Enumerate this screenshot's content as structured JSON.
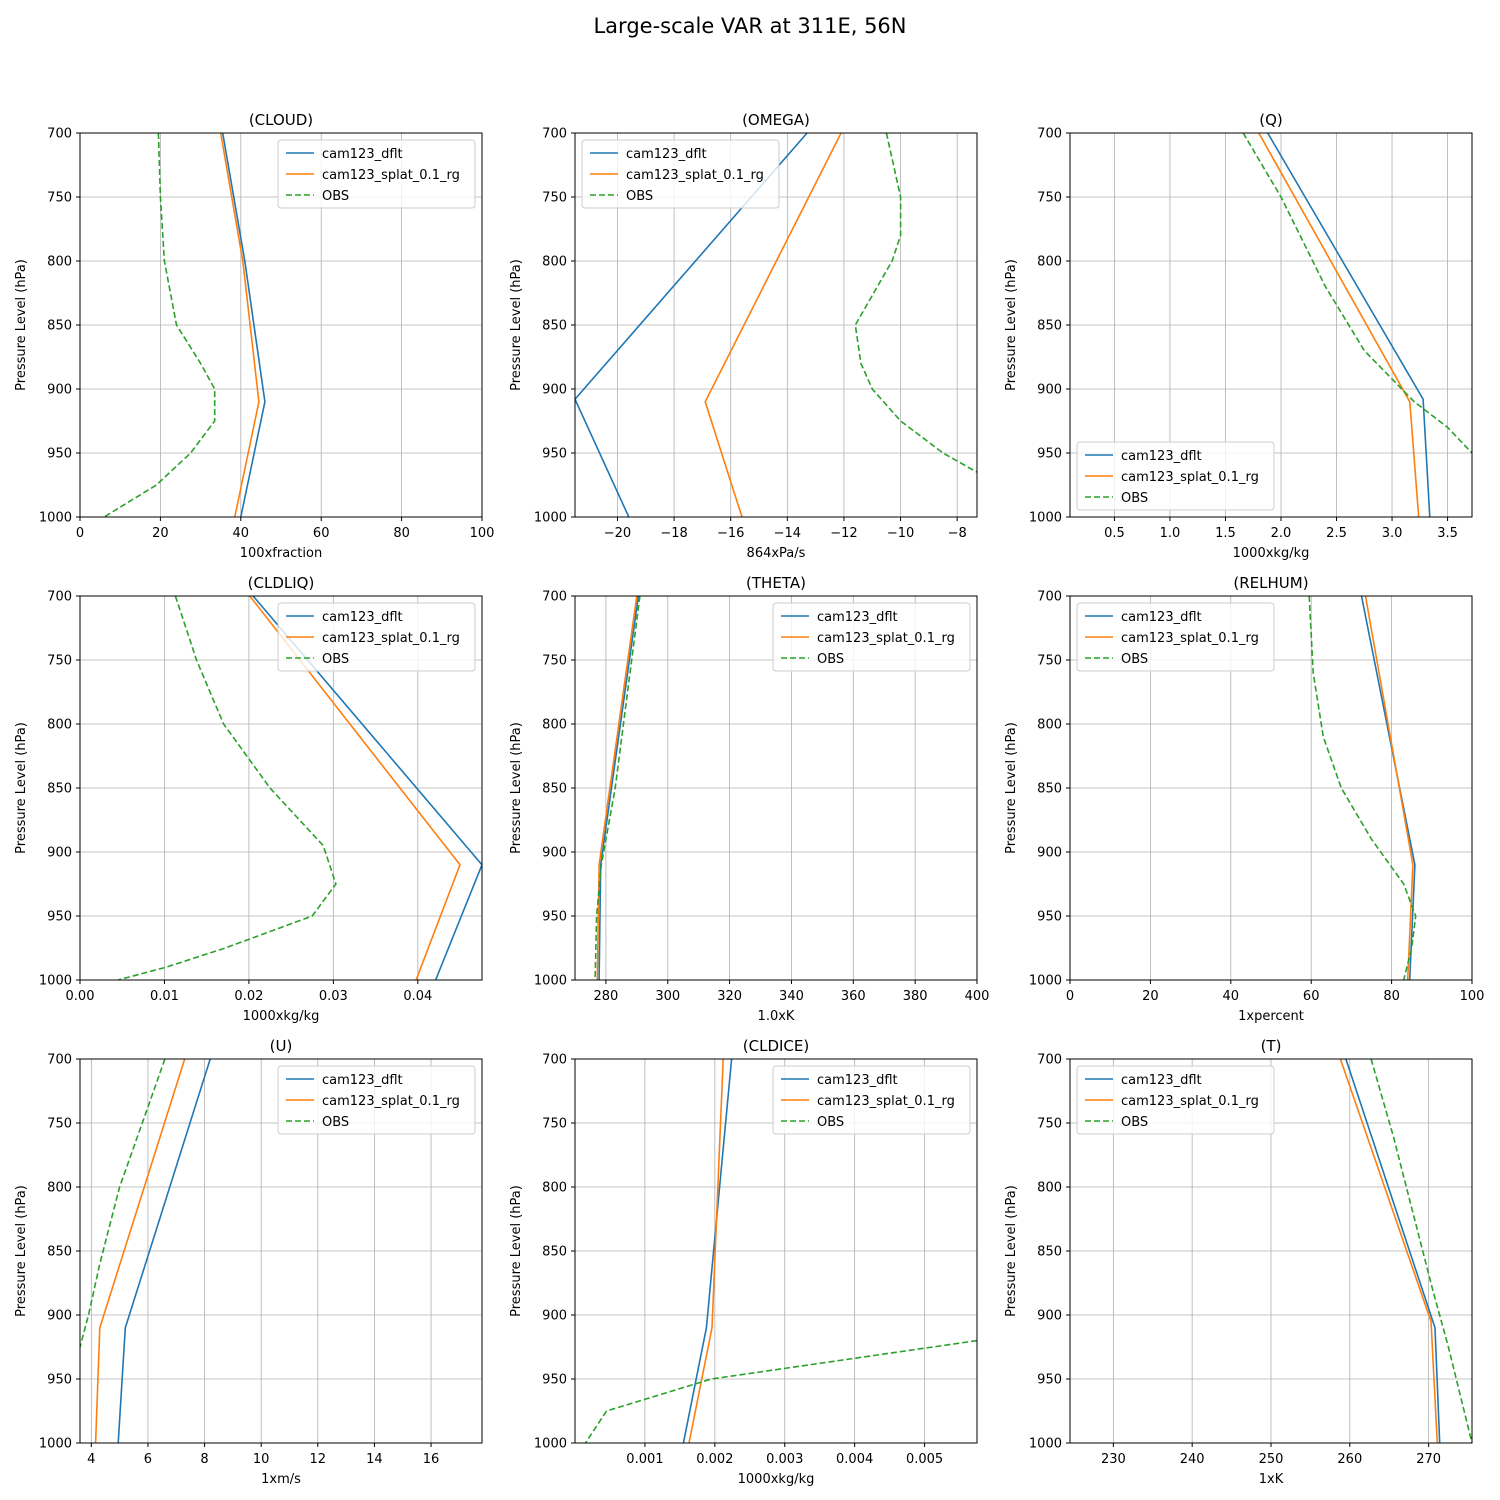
{
  "title": "Large-scale VAR at 311E, 56N",
  "colors": {
    "dflt": "#1f77b4",
    "splat": "#ff7f0e",
    "obs": "#2ca02c",
    "grid": "#b0b0b0"
  },
  "ylabel": "Pressure Level (hPa)",
  "chart_data": [
    {
      "type": "line",
      "title": "(CLOUD)",
      "xlabel": "100xfraction",
      "xlim": [
        0,
        100
      ],
      "ylim": [
        1000,
        700
      ],
      "legend": "top-right",
      "xticks": [
        0,
        20,
        40,
        60,
        80,
        100
      ],
      "xticklabels": [
        "0",
        "20",
        "40",
        "60",
        "80",
        "100"
      ],
      "yticks": [
        700,
        750,
        800,
        850,
        900,
        950,
        1000
      ],
      "series": [
        {
          "name": "cam123_dflt",
          "style": "solid",
          "points": [
            [
              35.5,
              700
            ],
            [
              41,
              800
            ],
            [
              46,
              910
            ],
            [
              40,
              1000
            ]
          ]
        },
        {
          "name": "cam123_splat_0.1_rg",
          "style": "solid",
          "points": [
            [
              35,
              700
            ],
            [
              40.5,
              800
            ],
            [
              44.5,
              910
            ],
            [
              38.5,
              1000
            ]
          ]
        },
        {
          "name": "OBS",
          "style": "dashed",
          "points": [
            [
              19.5,
              700
            ],
            [
              20,
              750
            ],
            [
              21,
              800
            ],
            [
              24,
              850
            ],
            [
              30,
              880
            ],
            [
              33.5,
              900
            ],
            [
              33.5,
              925
            ],
            [
              27.5,
              950
            ],
            [
              19,
              975
            ],
            [
              6,
              1000
            ]
          ]
        }
      ]
    },
    {
      "type": "line",
      "title": "(OMEGA)",
      "xlabel": "864xPa/s",
      "xlim": [
        -21.5,
        -7.3
      ],
      "ylim": [
        1000,
        700
      ],
      "legend": "top-left",
      "xticks": [
        -20,
        -18,
        -16,
        -14,
        -12,
        -10,
        -8
      ],
      "xticklabels": [
        "−20",
        "−18",
        "−16",
        "−14",
        "−12",
        "−10",
        "−8"
      ],
      "yticks": [
        700,
        750,
        800,
        850,
        900,
        950,
        1000
      ],
      "series": [
        {
          "name": "cam123_dflt",
          "style": "solid",
          "points": [
            [
              -13.3,
              700
            ],
            [
              -21.5,
              908
            ],
            [
              -19.6,
              1000
            ]
          ]
        },
        {
          "name": "cam123_splat_0.1_rg",
          "style": "solid",
          "points": [
            [
              -12.1,
              700
            ],
            [
              -16.9,
              910
            ],
            [
              -15.6,
              1000
            ]
          ]
        },
        {
          "name": "OBS",
          "style": "dashed",
          "points": [
            [
              -10.5,
              700
            ],
            [
              -10.0,
              750
            ],
            [
              -10.0,
              780
            ],
            [
              -10.3,
              800
            ],
            [
              -11.6,
              850
            ],
            [
              -11.4,
              880
            ],
            [
              -11.0,
              900
            ],
            [
              -10.0,
              925
            ],
            [
              -8.5,
              950
            ],
            [
              -7.3,
              965
            ]
          ]
        }
      ]
    },
    {
      "type": "line",
      "title": "(Q)",
      "xlabel": "1000xkg/kg",
      "xlim": [
        0.1,
        3.72
      ],
      "ylim": [
        1000,
        700
      ],
      "legend": "bottom-left",
      "xticks": [
        0.5,
        1.0,
        1.5,
        2.0,
        2.5,
        3.0,
        3.5
      ],
      "xticklabels": [
        "0.5",
        "1.0",
        "1.5",
        "2.0",
        "2.5",
        "3.0",
        "3.5"
      ],
      "yticks": [
        700,
        750,
        800,
        850,
        900,
        950,
        1000
      ],
      "series": [
        {
          "name": "cam123_dflt",
          "style": "solid",
          "points": [
            [
              1.88,
              700
            ],
            [
              3.28,
              908
            ],
            [
              3.34,
              1000
            ]
          ]
        },
        {
          "name": "cam123_splat_0.1_rg",
          "style": "solid",
          "points": [
            [
              1.8,
              700
            ],
            [
              3.16,
              910
            ],
            [
              3.24,
              1000
            ]
          ]
        },
        {
          "name": "OBS",
          "style": "dashed",
          "points": [
            [
              1.66,
              700
            ],
            [
              2.0,
              750
            ],
            [
              2.4,
              820
            ],
            [
              2.75,
              870
            ],
            [
              3.2,
              910
            ],
            [
              3.5,
              930
            ],
            [
              3.72,
              950
            ]
          ]
        }
      ]
    },
    {
      "type": "line",
      "title": "(CLDLIQ)",
      "xlabel": "1000xkg/kg",
      "xlim": [
        0,
        0.0476
      ],
      "ylim": [
        1000,
        700
      ],
      "legend": "top-right",
      "xticks": [
        0.0,
        0.01,
        0.02,
        0.03,
        0.04
      ],
      "xticklabels": [
        "0.00",
        "0.01",
        "0.02",
        "0.03",
        "0.04"
      ],
      "yticks": [
        700,
        750,
        800,
        850,
        900,
        950,
        1000
      ],
      "series": [
        {
          "name": "cam123_dflt",
          "style": "solid",
          "points": [
            [
              0.0205,
              700
            ],
            [
              0.0476,
              910
            ],
            [
              0.0421,
              1000
            ]
          ]
        },
        {
          "name": "cam123_splat_0.1_rg",
          "style": "solid",
          "points": [
            [
              0.0201,
              700
            ],
            [
              0.045,
              910
            ],
            [
              0.0398,
              1000
            ]
          ]
        },
        {
          "name": "OBS",
          "style": "dashed",
          "points": [
            [
              0.0113,
              700
            ],
            [
              0.0138,
              750
            ],
            [
              0.017,
              800
            ],
            [
              0.0225,
              850
            ],
            [
              0.0288,
              895
            ],
            [
              0.0303,
              925
            ],
            [
              0.0275,
              950
            ],
            [
              0.0172,
              975
            ],
            [
              0.0102,
              990
            ],
            [
              0.0045,
              1000
            ]
          ]
        }
      ]
    },
    {
      "type": "line",
      "title": "(THETA)",
      "xlabel": "1.0xK",
      "xlim": [
        270,
        400
      ],
      "ylim": [
        1000,
        700
      ],
      "legend": "top-right",
      "xticks": [
        280,
        300,
        320,
        340,
        360,
        380,
        400
      ],
      "xticklabels": [
        "280",
        "300",
        "320",
        "340",
        "360",
        "380",
        "400"
      ],
      "yticks": [
        700,
        750,
        800,
        850,
        900,
        950,
        1000
      ],
      "series": [
        {
          "name": "cam123_dflt",
          "style": "solid",
          "points": [
            [
              290.5,
              700
            ],
            [
              278.3,
              910
            ],
            [
              277.8,
              1000
            ]
          ]
        },
        {
          "name": "cam123_splat_0.1_rg",
          "style": "solid",
          "points": [
            [
              290,
              700
            ],
            [
              277.8,
              910
            ],
            [
              277.2,
              1000
            ]
          ]
        },
        {
          "name": "OBS",
          "style": "dashed",
          "points": [
            [
              291,
              700
            ],
            [
              283,
              850
            ],
            [
              278.5,
              910
            ],
            [
              277,
              950
            ],
            [
              276.5,
              1000
            ]
          ]
        }
      ]
    },
    {
      "type": "line",
      "title": "(RELHUM)",
      "xlabel": "1xpercent",
      "xlim": [
        0,
        100
      ],
      "ylim": [
        1000,
        700
      ],
      "legend": "top-left",
      "xticks": [
        0,
        20,
        40,
        60,
        80,
        100
      ],
      "xticklabels": [
        "0",
        "20",
        "40",
        "60",
        "80",
        "100"
      ],
      "yticks": [
        700,
        750,
        800,
        850,
        900,
        950,
        1000
      ],
      "series": [
        {
          "name": "cam123_dflt",
          "style": "solid",
          "points": [
            [
              72.5,
              700
            ],
            [
              85.8,
              910
            ],
            [
              84.5,
              1000
            ]
          ]
        },
        {
          "name": "cam123_splat_0.1_rg",
          "style": "solid",
          "points": [
            [
              73.5,
              700
            ],
            [
              85.3,
              910
            ],
            [
              84,
              1000
            ]
          ]
        },
        {
          "name": "OBS",
          "style": "dashed",
          "points": [
            [
              59.5,
              700
            ],
            [
              60.5,
              760
            ],
            [
              63,
              810
            ],
            [
              67.5,
              850
            ],
            [
              75,
              890
            ],
            [
              83,
              925
            ],
            [
              86,
              950
            ],
            [
              85,
              975
            ],
            [
              83,
              1000
            ]
          ]
        }
      ]
    },
    {
      "type": "line",
      "title": "(U)",
      "xlabel": "1xm/s",
      "xlim": [
        3.6,
        17.8
      ],
      "ylim": [
        1000,
        700
      ],
      "legend": "top-right",
      "xticks": [
        4,
        6,
        8,
        10,
        12,
        14,
        16
      ],
      "xticklabels": [
        "4",
        "6",
        "8",
        "10",
        "12",
        "14",
        "16"
      ],
      "yticks": [
        700,
        750,
        800,
        850,
        900,
        950,
        1000
      ],
      "series": [
        {
          "name": "cam123_dflt",
          "style": "solid",
          "points": [
            [
              8.2,
              700
            ],
            [
              5.2,
              910
            ],
            [
              4.95,
              1000
            ]
          ]
        },
        {
          "name": "cam123_splat_0.1_rg",
          "style": "solid",
          "points": [
            [
              7.3,
              700
            ],
            [
              4.3,
              910
            ],
            [
              4.15,
              1000
            ]
          ]
        },
        {
          "name": "OBS",
          "style": "dashed",
          "points": [
            [
              6.6,
              700
            ],
            [
              5.8,
              750
            ],
            [
              5,
              800
            ],
            [
              4.3,
              860
            ],
            [
              3.9,
              900
            ],
            [
              3.6,
              925
            ]
          ]
        }
      ]
    },
    {
      "type": "line",
      "title": "(CLDICE)",
      "xlabel": "1000xkg/kg",
      "xlim": [
        0.0,
        0.00575
      ],
      "ylim": [
        1000,
        700
      ],
      "legend": "top-right",
      "xticks": [
        0.001,
        0.002,
        0.003,
        0.004,
        0.005
      ],
      "xticklabels": [
        "0.001",
        "0.002",
        "0.003",
        "0.004",
        "0.005"
      ],
      "yticks": [
        700,
        750,
        800,
        850,
        900,
        950,
        1000
      ],
      "series": [
        {
          "name": "cam123_dflt",
          "style": "solid",
          "points": [
            [
              0.00224,
              700
            ],
            [
              0.00188,
              910
            ],
            [
              0.00155,
              1000
            ]
          ]
        },
        {
          "name": "cam123_splat_0.1_rg",
          "style": "solid",
          "points": [
            [
              0.00212,
              700
            ],
            [
              0.00196,
              910
            ],
            [
              0.00163,
              1000
            ]
          ]
        },
        {
          "name": "OBS",
          "style": "dashed",
          "points": [
            [
              0.00575,
              920
            ],
            [
              0.00195,
              950
            ],
            [
              0.00045,
              975
            ],
            [
              0.00015,
              1000
            ]
          ]
        }
      ]
    },
    {
      "type": "line",
      "title": "(T)",
      "xlabel": "1xK",
      "xlim": [
        224.5,
        275.5
      ],
      "ylim": [
        1000,
        700
      ],
      "legend": "top-left",
      "xticks": [
        230,
        240,
        250,
        260,
        270
      ],
      "xticklabels": [
        "230",
        "240",
        "250",
        "260",
        "270"
      ],
      "yticks": [
        700,
        750,
        800,
        850,
        900,
        950,
        1000
      ],
      "series": [
        {
          "name": "cam123_dflt",
          "style": "solid",
          "points": [
            [
              259.5,
              700
            ],
            [
              270.8,
              910
            ],
            [
              271.4,
              1000
            ]
          ]
        },
        {
          "name": "cam123_splat_0.1_rg",
          "style": "solid",
          "points": [
            [
              258.8,
              700
            ],
            [
              270.3,
              905
            ],
            [
              271.1,
              1000
            ]
          ]
        },
        {
          "name": "OBS",
          "style": "dashed",
          "points": [
            [
              262.7,
              700
            ],
            [
              265.5,
              760
            ],
            [
              268,
              820
            ],
            [
              270.5,
              880
            ],
            [
              272.5,
              925
            ],
            [
              275.5,
              1000
            ]
          ]
        }
      ]
    }
  ]
}
